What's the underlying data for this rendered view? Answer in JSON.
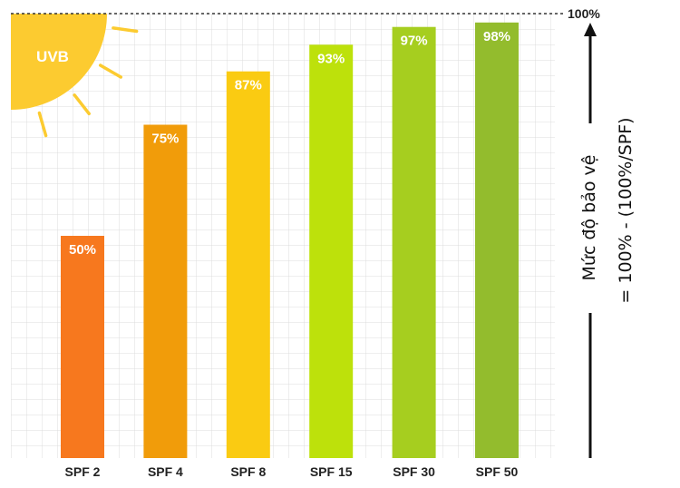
{
  "chart_data": {
    "type": "bar",
    "categories": [
      "SPF 2",
      "SPF 4",
      "SPF 8",
      "SPF 15",
      "SPF 30",
      "SPF 50"
    ],
    "values": [
      50,
      75,
      87,
      93,
      97,
      98
    ],
    "value_labels": [
      "50%",
      "75%",
      "87%",
      "93%",
      "97%",
      "98%"
    ],
    "bar_colors": [
      "#F7781E",
      "#F19C0A",
      "#FACB12",
      "#BDE10B",
      "#A6CE1F",
      "#93BC2D"
    ],
    "ylim": [
      0,
      100
    ],
    "top_line_label": "100%",
    "grid": true,
    "legend": "none"
  },
  "decoration": {
    "sun_label": "UVB",
    "sun_color": "#FCCB30"
  },
  "side_annotation": {
    "line1": "Mức độ bảo vệ",
    "line2": "= 100% - (100%/SPF)"
  }
}
